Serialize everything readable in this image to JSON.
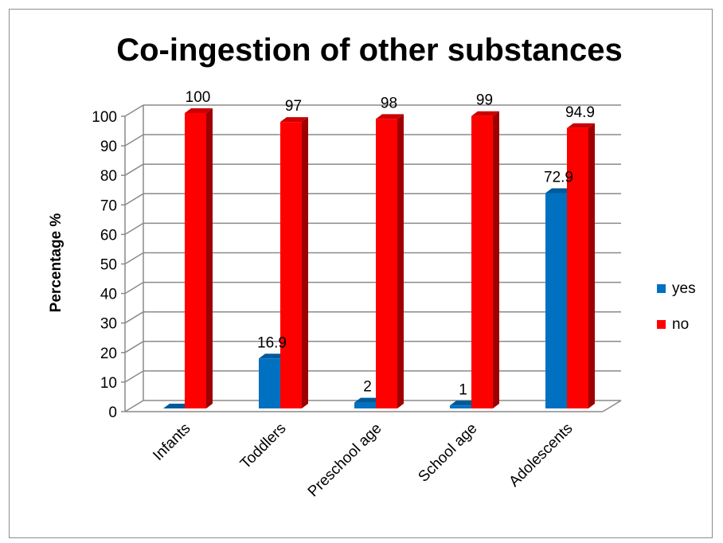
{
  "chart_data": {
    "type": "bar",
    "title": "Co-ingestion of other substances",
    "xlabel": "",
    "ylabel": "Percentage %",
    "ylim": [
      0,
      100
    ],
    "yticks": [
      0,
      10,
      20,
      30,
      40,
      50,
      60,
      70,
      80,
      90,
      100
    ],
    "categories": [
      "Infants",
      "Toddlers",
      "Preschool age",
      "School age",
      "Adolescents"
    ],
    "series": [
      {
        "name": "yes",
        "values": [
          0,
          16.9,
          2,
          1,
          72.9
        ],
        "labels": [
          "",
          "16.9",
          "2",
          "1",
          "72.9"
        ],
        "color": "#0070c0"
      },
      {
        "name": "no",
        "values": [
          100,
          97,
          98,
          99,
          94.9
        ],
        "labels": [
          "100",
          "97",
          "98",
          "99",
          "94.9"
        ],
        "color": "#ff0000"
      }
    ],
    "grid": true,
    "legend": "right",
    "style": "3d"
  }
}
